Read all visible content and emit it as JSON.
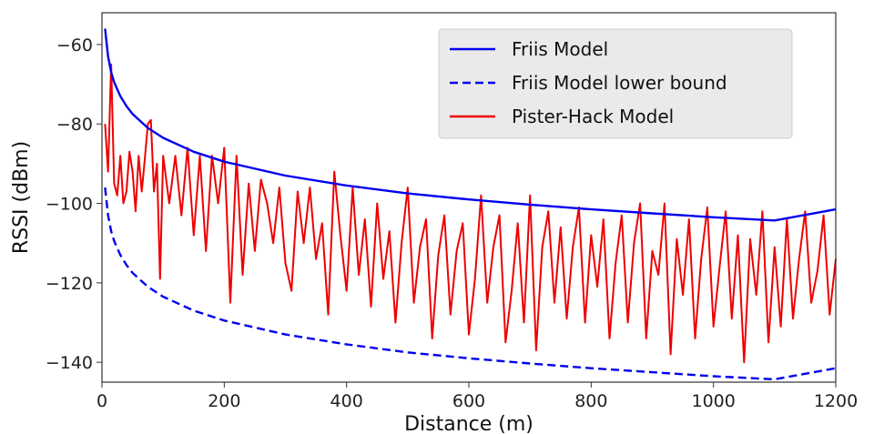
{
  "chart_data": {
    "type": "line",
    "xlabel": "Distance (m)",
    "ylabel": "RSSI (dBm)",
    "xlim": [
      0,
      1200
    ],
    "ylim": [
      -145,
      -52
    ],
    "xticks": [
      0,
      200,
      400,
      600,
      800,
      1000,
      1200
    ],
    "xtick_labels": [
      "0",
      "200",
      "400",
      "600",
      "800",
      "1000",
      "1200"
    ],
    "yticks": [
      -60,
      -80,
      -100,
      -120,
      -140
    ],
    "ytick_labels": [
      "−60",
      "−80",
      "−100",
      "−120",
      "−140"
    ],
    "grid": false,
    "legend_position": "top-right",
    "series": [
      {
        "name": "Friis Model",
        "color": "#0000ee",
        "style": "solid",
        "x": [
          5,
          10,
          15,
          20,
          30,
          40,
          50,
          75,
          100,
          150,
          200,
          300,
          400,
          500,
          600,
          700,
          800,
          900,
          1000,
          1100,
          1200
        ],
        "y": [
          -56,
          -63,
          -67,
          -69.5,
          -73,
          -75.5,
          -77.5,
          -81,
          -83.5,
          -87,
          -89.5,
          -93,
          -95.5,
          -97.5,
          -99,
          -100.3,
          -101.5,
          -102.5,
          -103.5,
          -104.3,
          -101.5
        ]
      },
      {
        "name": "Friis Model lower bound",
        "color": "#0000ee",
        "style": "dashed",
        "x": [
          5,
          10,
          15,
          20,
          30,
          40,
          50,
          75,
          100,
          150,
          200,
          300,
          400,
          500,
          600,
          700,
          800,
          900,
          1000,
          1100,
          1200
        ],
        "y": [
          -96,
          -103,
          -107,
          -109.5,
          -113,
          -115.5,
          -117.5,
          -121,
          -123.5,
          -127,
          -129.5,
          -133,
          -135.5,
          -137.5,
          -139,
          -140.3,
          -141.5,
          -142.5,
          -143.5,
          -144.3,
          -141.5
        ]
      },
      {
        "name": "Pister-Hack Model",
        "color": "#ee0000",
        "style": "solid",
        "x": [
          5,
          10,
          15,
          20,
          25,
          30,
          35,
          40,
          45,
          50,
          55,
          60,
          65,
          70,
          75,
          80,
          85,
          90,
          95,
          100,
          110,
          120,
          130,
          140,
          150,
          160,
          170,
          180,
          190,
          200,
          210,
          220,
          230,
          240,
          250,
          260,
          270,
          280,
          290,
          300,
          310,
          320,
          330,
          340,
          350,
          360,
          370,
          380,
          390,
          400,
          410,
          420,
          430,
          440,
          450,
          460,
          470,
          480,
          490,
          500,
          510,
          520,
          530,
          540,
          550,
          560,
          570,
          580,
          590,
          600,
          610,
          620,
          630,
          640,
          650,
          660,
          670,
          680,
          690,
          700,
          710,
          720,
          730,
          740,
          750,
          760,
          770,
          780,
          790,
          800,
          810,
          820,
          830,
          840,
          850,
          860,
          870,
          880,
          890,
          900,
          910,
          920,
          930,
          940,
          950,
          960,
          970,
          980,
          990,
          1000,
          1010,
          1020,
          1030,
          1040,
          1050,
          1060,
          1070,
          1080,
          1090,
          1100,
          1110,
          1120,
          1130,
          1140,
          1150,
          1160,
          1170,
          1180,
          1190,
          1200
        ],
        "y": [
          -80,
          -92,
          -65,
          -95,
          -98,
          -88,
          -100,
          -97,
          -87,
          -92,
          -102,
          -88,
          -97,
          -89,
          -80,
          -79,
          -97,
          -90,
          -119,
          -88,
          -100,
          -88,
          -103,
          -86,
          -108,
          -88,
          -112,
          -88,
          -100,
          -86,
          -125,
          -88,
          -118,
          -95,
          -112,
          -94,
          -100,
          -110,
          -96,
          -115,
          -122,
          -97,
          -110,
          -96,
          -114,
          -105,
          -128,
          -92,
          -108,
          -122,
          -96,
          -118,
          -104,
          -126,
          -100,
          -119,
          -107,
          -130,
          -110,
          -96,
          -125,
          -111,
          -104,
          -134,
          -113,
          -103,
          -128,
          -112,
          -105,
          -133,
          -119,
          -98,
          -125,
          -111,
          -103,
          -135,
          -122,
          -105,
          -130,
          -98,
          -137,
          -111,
          -102,
          -125,
          -106,
          -129,
          -111,
          -101,
          -130,
          -108,
          -121,
          -104,
          -134,
          -115,
          -103,
          -130,
          -110,
          -100,
          -134,
          -112,
          -118,
          -100,
          -138,
          -109,
          -123,
          -104,
          -134,
          -114,
          -101,
          -131,
          -116,
          -102,
          -129,
          -108,
          -140,
          -109,
          -123,
          -102,
          -135,
          -111,
          -131,
          -104,
          -129,
          -114,
          -102,
          -125,
          -117,
          -103,
          -128,
          -114
        ]
      }
    ]
  }
}
